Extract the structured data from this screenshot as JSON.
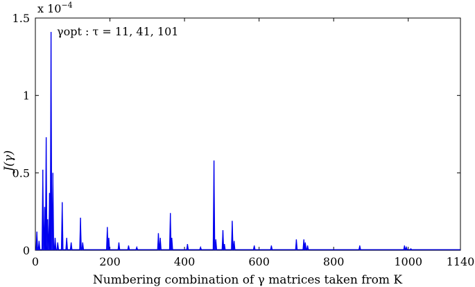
{
  "chart_data": {
    "type": "line",
    "xlabel": "Numbering combination of γ matrices taken from K",
    "ylabel": "J(γ)",
    "y_exponent_label": "x 10",
    "y_exponent_power": "−4",
    "annotation": "γopt : τ = 11, 41, 101",
    "xlim": [
      0,
      1140
    ],
    "ylim": [
      0,
      1.5
    ],
    "x_ticks": [
      0,
      200,
      400,
      600,
      800,
      1000,
      1140
    ],
    "y_ticks": [
      0,
      0.5,
      1,
      1.5
    ],
    "x_tick_labels": [
      "0",
      "200",
      "400",
      "600",
      "800",
      "1000",
      "1140"
    ],
    "y_tick_labels": [
      "0",
      "0.5",
      "1",
      "1.5"
    ],
    "grid": false,
    "line_color": "#0000ee",
    "peaks": [
      {
        "x": 4,
        "y": 0.12
      },
      {
        "x": 10,
        "y": 0.06
      },
      {
        "x": 20,
        "y": 0.52
      },
      {
        "x": 25,
        "y": 0.28
      },
      {
        "x": 29,
        "y": 0.73
      },
      {
        "x": 33,
        "y": 0.2
      },
      {
        "x": 38,
        "y": 0.37
      },
      {
        "x": 42,
        "y": 1.41
      },
      {
        "x": 47,
        "y": 0.5
      },
      {
        "x": 53,
        "y": 0.08
      },
      {
        "x": 60,
        "y": 0.05
      },
      {
        "x": 72,
        "y": 0.31
      },
      {
        "x": 84,
        "y": 0.08
      },
      {
        "x": 96,
        "y": 0.05
      },
      {
        "x": 121,
        "y": 0.21
      },
      {
        "x": 127,
        "y": 0.05
      },
      {
        "x": 193,
        "y": 0.15
      },
      {
        "x": 197,
        "y": 0.08
      },
      {
        "x": 224,
        "y": 0.05
      },
      {
        "x": 250,
        "y": 0.03
      },
      {
        "x": 272,
        "y": 0.02
      },
      {
        "x": 330,
        "y": 0.11
      },
      {
        "x": 335,
        "y": 0.08
      },
      {
        "x": 362,
        "y": 0.24
      },
      {
        "x": 366,
        "y": 0.08
      },
      {
        "x": 408,
        "y": 0.04
      },
      {
        "x": 443,
        "y": 0.02
      },
      {
        "x": 479,
        "y": 0.58
      },
      {
        "x": 484,
        "y": 0.07
      },
      {
        "x": 503,
        "y": 0.13
      },
      {
        "x": 507,
        "y": 0.04
      },
      {
        "x": 528,
        "y": 0.19
      },
      {
        "x": 533,
        "y": 0.06
      },
      {
        "x": 587,
        "y": 0.03
      },
      {
        "x": 633,
        "y": 0.03
      },
      {
        "x": 700,
        "y": 0.07
      },
      {
        "x": 720,
        "y": 0.07
      },
      {
        "x": 724,
        "y": 0.05
      },
      {
        "x": 730,
        "y": 0.03
      },
      {
        "x": 870,
        "y": 0.03
      },
      {
        "x": 990,
        "y": 0.03
      },
      {
        "x": 995,
        "y": 0.02
      },
      {
        "x": 1007,
        "y": 0.01
      }
    ]
  }
}
